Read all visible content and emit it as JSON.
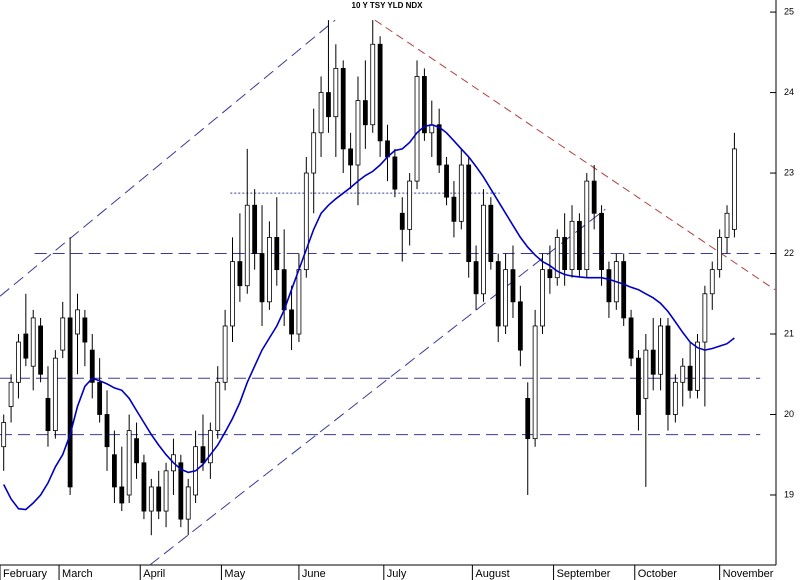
{
  "chart_data": {
    "type": "candlestick",
    "title": "10 Y TSY YLD NDX",
    "xlim": [
      -0.5,
      104.5
    ],
    "ylim": [
      18.13,
      25.15
    ],
    "yticks": [
      19,
      20,
      21,
      22,
      23,
      24,
      25
    ],
    "xticks": [
      {
        "value": -0.5,
        "label": "February"
      },
      {
        "value": 7.5,
        "label": "March"
      },
      {
        "value": 18.5,
        "label": "April"
      },
      {
        "value": 29.5,
        "label": "May"
      },
      {
        "value": 40,
        "label": "June"
      },
      {
        "value": 51.5,
        "label": "July"
      },
      {
        "value": 63.5,
        "label": "August"
      },
      {
        "value": 74.5,
        "label": "September"
      },
      {
        "value": 85.5,
        "label": "October"
      },
      {
        "value": 97,
        "label": "November"
      }
    ],
    "up_color": "#ffffff",
    "down_color": "#000000",
    "open": [
      19.6,
      20.1,
      20.4,
      21.0,
      20.6,
      21.1,
      20.2,
      19.8,
      20.8,
      21.2,
      21.0,
      21.2,
      20.8,
      20.4,
      20.0,
      19.5,
      19.1,
      19.0,
      19.7,
      19.4,
      18.8,
      19.1,
      18.8,
      19.3,
      19.4,
      18.7,
      19.0,
      19.6,
      19.4,
      19.8,
      20.4,
      21.1,
      21.9,
      21.6,
      22.6,
      22.0,
      21.4,
      22.2,
      21.8,
      21.3,
      21.0,
      21.8,
      23.0,
      23.5,
      24.0,
      23.7,
      24.3,
      23.3,
      23.1,
      23.9,
      23.6,
      24.6,
      23.4,
      23.2,
      22.5,
      22.3,
      22.9,
      24.2,
      23.5,
      23.6,
      23.1,
      22.7,
      22.4,
      23.1,
      21.9,
      21.5,
      22.6,
      21.9,
      21.1,
      21.8,
      21.4,
      20.2,
      19.7,
      21.1,
      21.8,
      21.7,
      22.2,
      21.8,
      22.4,
      21.8,
      22.9,
      22.5,
      21.8,
      21.4,
      21.9,
      21.2,
      20.7,
      20.2,
      20.8,
      20.5,
      21.1,
      20.0,
      20.4,
      20.6,
      20.3,
      20.9,
      21.5,
      21.8,
      22.2,
      22.3
    ],
    "high": [
      20.0,
      20.5,
      21.0,
      21.5,
      21.3,
      21.2,
      20.6,
      20.8,
      21.4,
      22.2,
      21.5,
      21.3,
      21.0,
      20.7,
      20.3,
      19.8,
      19.6,
      20.0,
      19.9,
      19.5,
      19.2,
      19.3,
      19.4,
      19.7,
      19.5,
      19.2,
      19.8,
      20.0,
      19.9,
      20.6,
      21.3,
      22.2,
      22.5,
      23.3,
      22.8,
      22.6,
      22.4,
      22.7,
      22.3,
      21.6,
      22.0,
      23.2,
      23.8,
      24.2,
      24.9,
      24.6,
      24.4,
      23.5,
      24.2,
      24.4,
      24.9,
      24.7,
      23.6,
      23.3,
      22.7,
      23.0,
      24.4,
      24.3,
      23.9,
      23.8,
      23.2,
      22.9,
      23.3,
      23.2,
      22.1,
      22.8,
      22.7,
      22.0,
      22.0,
      22.1,
      21.6,
      20.4,
      21.3,
      22.0,
      22.1,
      22.3,
      22.5,
      22.6,
      22.5,
      23.0,
      23.1,
      22.6,
      21.9,
      22.0,
      22.0,
      21.3,
      20.8,
      21.0,
      21.2,
      21.2,
      21.2,
      20.5,
      20.7,
      20.9,
      21.0,
      21.6,
      21.9,
      22.3,
      22.6,
      23.5
    ],
    "low": [
      19.3,
      19.9,
      20.2,
      20.6,
      20.3,
      20.4,
      19.6,
      19.7,
      20.7,
      19.0,
      20.5,
      20.6,
      20.2,
      19.9,
      19.3,
      18.9,
      18.8,
      18.9,
      19.2,
      18.7,
      18.5,
      18.7,
      18.6,
      19.0,
      18.6,
      18.5,
      18.9,
      19.3,
      19.2,
      19.7,
      20.3,
      20.9,
      21.4,
      21.5,
      21.8,
      21.1,
      21.3,
      21.6,
      21.1,
      20.8,
      20.9,
      21.7,
      22.5,
      23.2,
      23.5,
      23.2,
      23.0,
      22.8,
      22.6,
      23.3,
      23.5,
      23.2,
      22.9,
      22.7,
      21.9,
      22.1,
      22.8,
      23.4,
      23.2,
      23.0,
      22.6,
      22.2,
      22.3,
      21.7,
      21.3,
      21.4,
      21.8,
      20.9,
      21.0,
      21.2,
      20.6,
      19.0,
      19.6,
      21.0,
      21.5,
      21.6,
      21.6,
      21.7,
      21.7,
      21.7,
      22.3,
      21.6,
      21.2,
      21.3,
      21.1,
      20.6,
      19.8,
      19.1,
      20.3,
      20.3,
      19.8,
      19.9,
      20.1,
      20.2,
      20.2,
      20.1,
      21.3,
      21.7,
      22.0,
      22.2
    ],
    "close": [
      19.9,
      20.4,
      20.9,
      20.7,
      21.2,
      20.5,
      19.8,
      20.7,
      21.2,
      19.1,
      21.3,
      20.9,
      20.4,
      20.0,
      19.6,
      19.1,
      18.9,
      19.8,
      19.4,
      18.8,
      19.1,
      18.8,
      19.3,
      19.5,
      18.7,
      19.1,
      19.6,
      19.4,
      19.8,
      20.4,
      21.1,
      21.9,
      21.6,
      22.6,
      22.0,
      21.4,
      22.2,
      21.8,
      21.3,
      21.0,
      21.8,
      23.0,
      23.5,
      24.0,
      23.7,
      24.3,
      23.3,
      23.1,
      23.9,
      23.6,
      24.6,
      23.4,
      23.2,
      22.8,
      22.3,
      22.9,
      24.2,
      23.5,
      23.6,
      23.1,
      22.7,
      22.4,
      23.1,
      21.9,
      21.5,
      22.6,
      21.9,
      21.1,
      21.8,
      21.4,
      20.8,
      19.7,
      21.1,
      21.8,
      21.7,
      22.2,
      21.8,
      22.4,
      21.8,
      22.9,
      22.5,
      21.8,
      21.4,
      21.9,
      21.2,
      20.7,
      20.0,
      20.8,
      20.5,
      21.1,
      20.0,
      20.4,
      20.6,
      20.3,
      20.9,
      21.5,
      21.8,
      22.2,
      22.5,
      23.3
    ],
    "line": {
      "color": "#0000c0",
      "values": [
        19.13,
        18.95,
        18.83,
        18.82,
        18.9,
        19.0,
        19.15,
        19.35,
        19.5,
        19.75,
        20.1,
        20.35,
        20.45,
        20.42,
        20.38,
        20.33,
        20.3,
        20.2,
        20.05,
        19.9,
        19.75,
        19.62,
        19.5,
        19.4,
        19.32,
        19.28,
        19.3,
        19.38,
        19.5,
        19.62,
        19.78,
        19.95,
        20.15,
        20.4,
        20.6,
        20.8,
        20.95,
        21.1,
        21.3,
        21.55,
        21.8,
        22.05,
        22.3,
        22.5,
        22.6,
        22.68,
        22.75,
        22.82,
        22.9,
        22.97,
        23.02,
        23.1,
        23.2,
        23.28,
        23.3,
        23.38,
        23.5,
        23.58,
        23.6,
        23.57,
        23.5,
        23.4,
        23.3,
        23.2,
        23.08,
        22.95,
        22.8,
        22.65,
        22.5,
        22.35,
        22.2,
        22.08,
        21.98,
        21.9,
        21.85,
        21.78,
        21.74,
        21.72,
        21.71,
        21.7,
        21.7,
        21.7,
        21.68,
        21.65,
        21.62,
        21.58,
        21.55,
        21.5,
        21.45,
        21.38,
        21.28,
        21.15,
        21.02,
        20.9,
        20.83,
        20.8,
        20.82,
        20.85,
        20.88,
        20.95
      ]
    },
    "lines": [
      {
        "from": [
          -0.5,
          21.47
        ],
        "to": [
          44.9,
          24.9
        ],
        "color": "#3a3a9a",
        "dash": "12 6"
      },
      {
        "from": [
          19.8,
          18.13
        ],
        "to": [
          81.5,
          22.55
        ],
        "color": "#3a3a9a",
        "dash": "12 6"
      },
      {
        "from": [
          50.3,
          24.9
        ],
        "to": [
          104.5,
          21.55
        ],
        "color": "#b04040",
        "dash": "8 5"
      },
      {
        "from": [
          30.7,
          22.75
        ],
        "to": [
          67.2,
          22.75
        ],
        "color": "#3a3a9a",
        "dash": "2 2"
      },
      {
        "from": [
          4.2,
          22.0
        ],
        "to": [
          102.5,
          22.0
        ],
        "color": "#3a3a9a",
        "dash": "12 6"
      },
      {
        "from": [
          -0.5,
          20.45
        ],
        "to": [
          102.5,
          20.45
        ],
        "color": "#3a3a9a",
        "dash": "12 6"
      },
      {
        "from": [
          -0.5,
          19.75
        ],
        "to": [
          102.5,
          19.75
        ],
        "color": "#3a3a9a",
        "dash": "12 6"
      }
    ]
  }
}
